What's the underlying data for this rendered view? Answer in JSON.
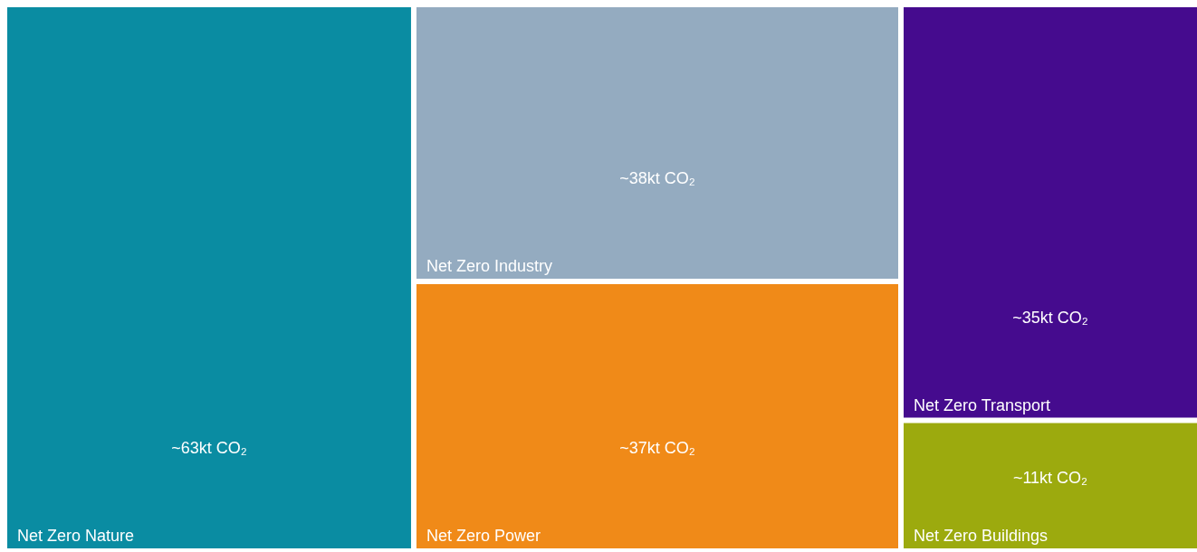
{
  "chart_data": {
    "type": "other",
    "categories": [
      "Net Zero Nature",
      "Net Zero Industry",
      "Net Zero Power",
      "Net Zero Transport",
      "Net Zero Buildings"
    ],
    "values": [
      63,
      38,
      37,
      35,
      11
    ],
    "value_labels": [
      "~63kt CO₂",
      "~38kt CO₂",
      "~37kt CO₂",
      "~35kt CO₂",
      "~11kt CO₂"
    ],
    "colors": [
      "#0a8ca2",
      "#94abc0",
      "#f08a18",
      "#450b8e",
      "#9caa0e"
    ]
  }
}
